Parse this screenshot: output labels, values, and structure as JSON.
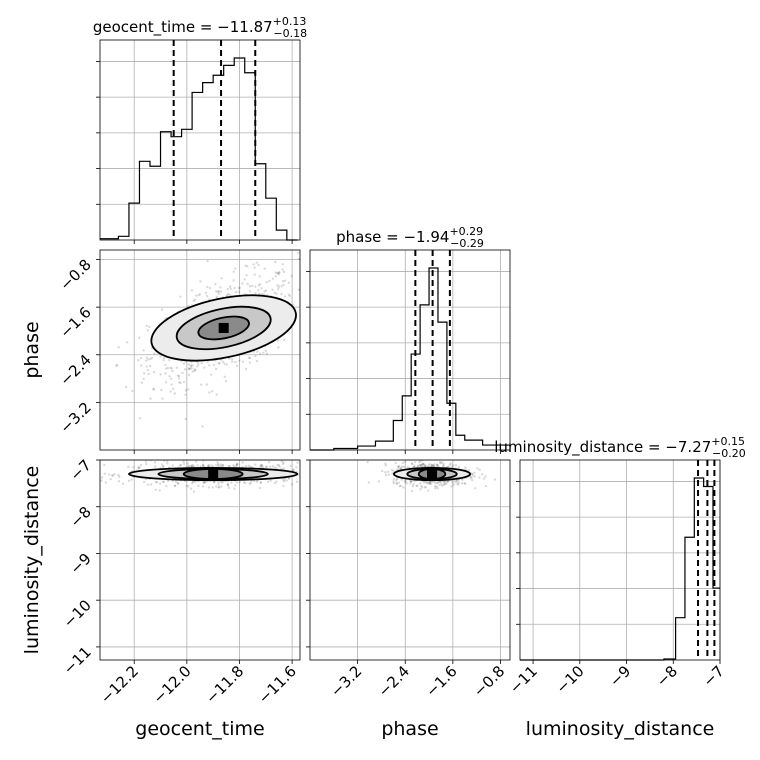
{
  "chart_data": {
    "type": "corner",
    "parameters": [
      "geocent_time",
      "phase",
      "luminosity_distance"
    ],
    "axis_labels": {
      "geocent_time": "geocent_time",
      "phase": "phase",
      "luminosity_distance": "luminosity_distance"
    },
    "ranges": {
      "geocent_time": [
        -12.33,
        -11.57
      ],
      "phase": [
        -4.0,
        -0.64
      ],
      "luminosity_distance": [
        -11.28,
        -7.0
      ]
    },
    "ticks": {
      "geocent_time": {
        "values": [
          -12.2,
          -12.0,
          -11.8,
          -11.6
        ],
        "labels": [
          "−12.2",
          "−12.0",
          "−11.8",
          "−11.6"
        ]
      },
      "phase": {
        "values": [
          -3.2,
          -2.4,
          -1.6,
          -0.8
        ],
        "labels": [
          "−3.2",
          "−2.4",
          "−1.6",
          "−0.8"
        ]
      },
      "luminosity_distance": {
        "values": [
          -11,
          -10,
          -9,
          -8,
          -7
        ],
        "labels": [
          "−11",
          "−10",
          "−9",
          "−8",
          "−7"
        ]
      }
    },
    "titles": [
      {
        "param": "geocent_time",
        "text": "geocent_time = −11.87",
        "sup": "+0.13",
        "sub": "−0.18"
      },
      {
        "param": "phase",
        "text": "phase = −1.94",
        "sup": "+0.29",
        "sub": "−0.29"
      },
      {
        "param": "luminosity_distance",
        "text": "luminosity_distance = −7.27",
        "sup": "+0.15",
        "sub": "−0.20"
      }
    ],
    "quantiles": {
      "geocent_time": [
        -12.05,
        -11.87,
        -11.74
      ],
      "phase": [
        -2.23,
        -1.94,
        -1.65
      ],
      "luminosity_distance": [
        -7.47,
        -7.27,
        -7.12
      ]
    },
    "histograms": {
      "geocent_time": {
        "edges": [
          -12.33,
          -12.3,
          -12.26,
          -12.22,
          -12.18,
          -12.14,
          -12.1,
          -12.06,
          -12.02,
          -11.98,
          -11.94,
          -11.9,
          -11.86,
          -11.82,
          -11.78,
          -11.74,
          -11.7,
          -11.66,
          -11.62,
          -11.58
        ],
        "counts": [
          0.005,
          0.005,
          0.015,
          0.15,
          0.32,
          0.3,
          0.44,
          0.42,
          0.45,
          0.6,
          0.64,
          0.67,
          0.71,
          0.74,
          0.68,
          0.31,
          0.17,
          0.04,
          0.0
        ]
      },
      "phase": {
        "edges": [
          -4.0,
          -3.6,
          -3.2,
          -2.9,
          -2.6,
          -2.45,
          -2.3,
          -2.15,
          -2.0,
          -1.85,
          -1.7,
          -1.55,
          -1.4,
          -1.1,
          -0.64
        ],
        "counts": [
          0.0,
          0.003,
          0.008,
          0.018,
          0.06,
          0.11,
          0.195,
          0.295,
          0.37,
          0.26,
          0.095,
          0.03,
          0.02,
          0.01
        ]
      },
      "luminosity_distance": {
        "edges": [
          -11.28,
          -8.2,
          -7.95,
          -7.75,
          -7.55,
          -7.35,
          -7.15,
          -7.0
        ],
        "counts": [
          0.0,
          0.005,
          0.2,
          0.58,
          0.86,
          0.82,
          0.34
        ]
      }
    }
  }
}
